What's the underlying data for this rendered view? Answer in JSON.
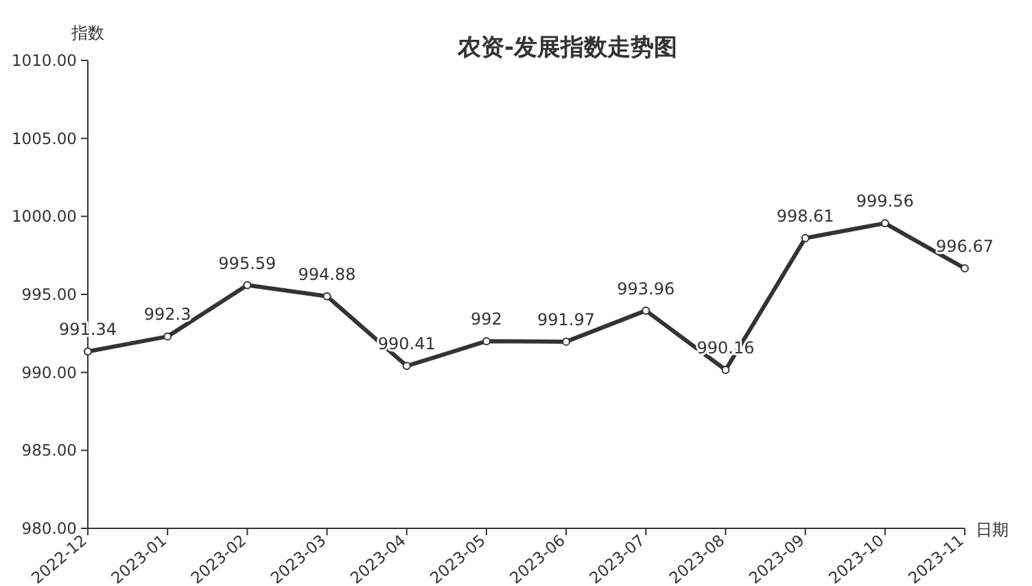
{
  "chart_data": {
    "type": "line",
    "title": "农资-发展指数走势图",
    "xlabel": "日期",
    "ylabel": "指数",
    "categories": [
      "2022-12",
      "2023-01",
      "2023-02",
      "2023-03",
      "2023-04",
      "2023-05",
      "2023-06",
      "2023-07",
      "2023-08",
      "2023-09",
      "2023-10",
      "2023-11"
    ],
    "series": [
      {
        "color": "#333333",
        "values": [
          991.34,
          992.3,
          995.59,
          994.88,
          990.41,
          992,
          991.97,
          993.96,
          990.16,
          998.61,
          999.56,
          996.67
        ]
      }
    ],
    "ylim": [
      980,
      1010
    ],
    "yticks": [
      {
        "value": 980,
        "label": "980.00"
      },
      {
        "value": 985,
        "label": "985.00"
      },
      {
        "value": 990,
        "label": "990.00"
      },
      {
        "value": 995,
        "label": "995.00"
      },
      {
        "value": 1000,
        "label": "1000.00"
      },
      {
        "value": 1005,
        "label": "1005.00"
      },
      {
        "value": 1010,
        "label": "1010.00"
      }
    ],
    "data_labels": true,
    "marker": "circle",
    "line_style": "solid",
    "grid": false
  }
}
